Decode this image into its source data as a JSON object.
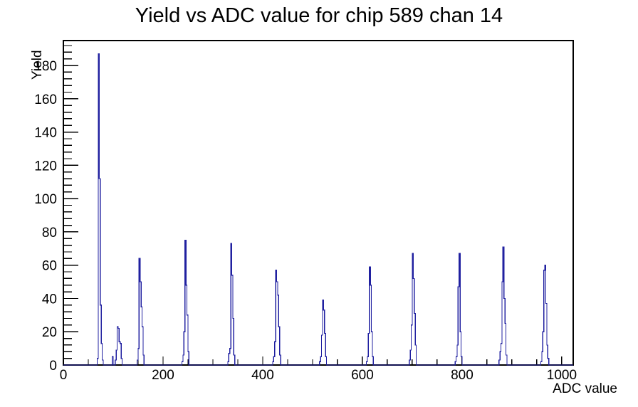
{
  "chart_data": {
    "type": "bar",
    "style": "step-histogram-outline",
    "title": "Yield vs ADC value for chip 589 chan 14",
    "xlabel": "ADC value",
    "ylabel": "Yield",
    "xlim": [
      0,
      1023
    ],
    "ylim": [
      0,
      195
    ],
    "x_major_ticks": [
      0,
      200,
      400,
      600,
      800,
      1000
    ],
    "x_minor_step": 50,
    "y_major_ticks": [
      0,
      20,
      40,
      60,
      80,
      100,
      120,
      140,
      160,
      180
    ],
    "y_minor_step": 4,
    "grid": false,
    "legend": null,
    "line_color": "#2020a0",
    "axis_color": "#000000",
    "bin_width": 2,
    "clusters": [
      {
        "start": 68,
        "heights": [
          4,
          187,
          112,
          36,
          13,
          3
        ]
      },
      {
        "start": 98,
        "heights": [
          5
        ]
      },
      {
        "start": 104,
        "heights": [
          3,
          9,
          23,
          22,
          14,
          13,
          4
        ]
      },
      {
        "start": 148,
        "heights": [
          3,
          10,
          64,
          50,
          35,
          23,
          6
        ]
      },
      {
        "start": 238,
        "heights": [
          2,
          6,
          20,
          75,
          48,
          30,
          8
        ]
      },
      {
        "start": 330,
        "heights": [
          2,
          7,
          10,
          73,
          54,
          28,
          6
        ]
      },
      {
        "start": 420,
        "heights": [
          2,
          5,
          14,
          57,
          50,
          42,
          23,
          6
        ]
      },
      {
        "start": 514,
        "heights": [
          2,
          5,
          18,
          39,
          33,
          19,
          5
        ]
      },
      {
        "start": 608,
        "heights": [
          2,
          5,
          19,
          59,
          48,
          20,
          5
        ]
      },
      {
        "start": 694,
        "heights": [
          3,
          9,
          24,
          67,
          52,
          31,
          12
        ]
      },
      {
        "start": 786,
        "heights": [
          2,
          5,
          12,
          47,
          67,
          20,
          5
        ]
      },
      {
        "start": 874,
        "heights": [
          3,
          8,
          13,
          50,
          71,
          40,
          25,
          6
        ]
      },
      {
        "start": 958,
        "heights": [
          2,
          8,
          20,
          57,
          60,
          37,
          12,
          4
        ]
      }
    ]
  }
}
